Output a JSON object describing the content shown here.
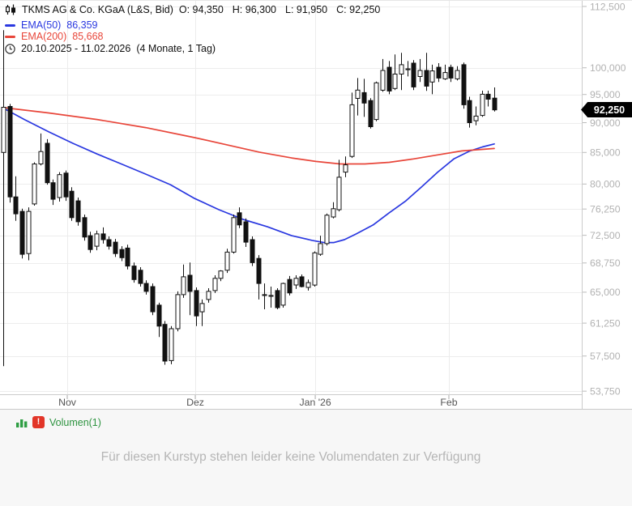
{
  "header": {
    "title": "TKMS AG & Co. KGaA (L&S, Bid)",
    "ohlc": {
      "open": "O: 94,350",
      "high": "H: 96,300",
      "low": "L: 91,950",
      "close": "C: 92,250"
    },
    "range": "20.10.2025 - 11.02.2026",
    "period": "(4 Monate, 1 Tag)"
  },
  "legend": [
    {
      "name": "EMA(50)",
      "value": "86,359",
      "color": "#2a38e0"
    },
    {
      "name": "EMA(200)",
      "value": "85,668",
      "color": "#e8463a"
    }
  ],
  "price_badge": {
    "label": "92,250",
    "value": 92250,
    "bg": "#000000",
    "fg": "#ffffff"
  },
  "volume_panel": {
    "icon": "bar-chart-icon",
    "alert": "!",
    "label": "Volumen(1)",
    "message": "Für diesen Kurstyp stehen leider keine Volumendaten zur Verfügung"
  },
  "chart_data": {
    "type": "candlestick",
    "title": "TKMS AG & Co. KGaA (L&S, Bid)",
    "scale": "log",
    "ylim": [
      53430,
      113900
    ],
    "grid": true,
    "y_ticks": [
      {
        "v": 112500,
        "label": "112,500"
      },
      {
        "v": 100000,
        "label": "100,000"
      },
      {
        "v": 95000,
        "label": "95,000"
      },
      {
        "v": 90000,
        "label": "90,000"
      },
      {
        "v": 85000,
        "label": "85,000"
      },
      {
        "v": 80000,
        "label": "80,000"
      },
      {
        "v": 76250,
        "label": "76,250"
      },
      {
        "v": 72500,
        "label": "72,500"
      },
      {
        "v": 68750,
        "label": "68,750"
      },
      {
        "v": 65000,
        "label": "65,000"
      },
      {
        "v": 61250,
        "label": "61,250"
      },
      {
        "v": 57500,
        "label": "57,500"
      },
      {
        "v": 53750,
        "label": "53,750"
      }
    ],
    "x_ticks": [
      {
        "i": 10.3,
        "label": "Nov"
      },
      {
        "i": 30.9,
        "label": "Dez"
      },
      {
        "i": 50.2,
        "label": "Jan '26"
      },
      {
        "i": 71.7,
        "label": "Feb"
      }
    ],
    "last_price": 92250,
    "ohlc": [
      [
        85000,
        107500,
        56400,
        92700
      ],
      [
        92850,
        93300,
        77200,
        78050
      ],
      [
        78050,
        81200,
        74550,
        75550
      ],
      [
        75900,
        76300,
        69350,
        69900
      ],
      [
        70000,
        76500,
        69100,
        75900
      ],
      [
        77000,
        83400,
        76750,
        83150
      ],
      [
        83150,
        88150,
        82900,
        85150
      ],
      [
        86500,
        87200,
        79900,
        80200
      ],
      [
        80200,
        80700,
        76850,
        77700
      ],
      [
        77950,
        81850,
        77350,
        81450
      ],
      [
        81700,
        82100,
        77450,
        78050
      ],
      [
        78900,
        79500,
        74550,
        75000
      ],
      [
        77450,
        77950,
        73850,
        74400
      ],
      [
        75000,
        75450,
        71750,
        72250
      ],
      [
        72450,
        73000,
        70100,
        70550
      ],
      [
        71000,
        73150,
        70450,
        72700
      ],
      [
        72700,
        73600,
        71350,
        71900
      ],
      [
        71900,
        72350,
        70550,
        71000
      ],
      [
        71550,
        72000,
        69550,
        70000
      ],
      [
        70550,
        71000,
        69000,
        69450
      ],
      [
        70750,
        71200,
        67900,
        68350
      ],
      [
        68350,
        68800,
        66200,
        66600
      ],
      [
        67800,
        68200,
        65700,
        66100
      ],
      [
        66100,
        66500,
        64700,
        65100
      ],
      [
        65700,
        66100,
        62200,
        62600
      ],
      [
        63400,
        63700,
        59650,
        60900
      ],
      [
        61100,
        61500,
        56550,
        56950
      ],
      [
        57000,
        60900,
        56600,
        60600
      ],
      [
        60600,
        65100,
        60300,
        64700
      ],
      [
        64700,
        68550,
        64300,
        66950
      ],
      [
        67150,
        68800,
        62200,
        65100
      ],
      [
        65200,
        65600,
        60900,
        62100
      ],
      [
        62600,
        64100,
        60900,
        63600
      ],
      [
        64100,
        65500,
        63700,
        65100
      ],
      [
        65200,
        67150,
        64900,
        66750
      ],
      [
        66750,
        67800,
        66400,
        67700
      ],
      [
        67800,
        70650,
        67450,
        70200
      ],
      [
        70200,
        75450,
        70000,
        75000
      ],
      [
        75700,
        76500,
        73500,
        73950
      ],
      [
        74400,
        74900,
        70900,
        71550
      ],
      [
        71900,
        72350,
        68350,
        68800
      ],
      [
        69350,
        69800,
        64100,
        66100
      ],
      [
        64700,
        66100,
        62900,
        64700
      ],
      [
        64600,
        65700,
        63100,
        64600
      ],
      [
        65200,
        65500,
        62900,
        63100
      ],
      [
        63400,
        66200,
        63100,
        66100
      ],
      [
        66600,
        67050,
        64600,
        64900
      ],
      [
        65900,
        67150,
        65400,
        66750
      ],
      [
        66950,
        67250,
        65600,
        65700
      ],
      [
        65600,
        66600,
        65200,
        66200
      ],
      [
        65900,
        70300,
        65700,
        70100
      ],
      [
        69900,
        72450,
        69700,
        71350
      ],
      [
        71350,
        75600,
        71100,
        75350
      ],
      [
        75100,
        77250,
        74900,
        76300
      ],
      [
        76150,
        83800,
        75900,
        81050
      ],
      [
        81850,
        84350,
        81050,
        83000
      ],
      [
        84350,
        95350,
        84100,
        93150
      ],
      [
        94300,
        98050,
        91250,
        95800
      ],
      [
        95350,
        97900,
        91000,
        93450
      ],
      [
        93900,
        94350,
        89000,
        89300
      ],
      [
        90550,
        97400,
        90250,
        97150
      ],
      [
        95800,
        101700,
        95500,
        99500
      ],
      [
        100100,
        101300,
        95050,
        95650
      ],
      [
        96100,
        102600,
        95800,
        98800
      ],
      [
        98800,
        102900,
        95800,
        100600
      ],
      [
        99800,
        101300,
        98350,
        99800
      ],
      [
        100900,
        101500,
        95800,
        96400
      ],
      [
        98350,
        101700,
        97300,
        99500
      ],
      [
        99500,
        102900,
        95650,
        96550
      ],
      [
        97300,
        100600,
        95050,
        99400
      ],
      [
        100100,
        100900,
        97300,
        98050
      ],
      [
        97900,
        100600,
        97700,
        99100
      ],
      [
        100100,
        100600,
        97300,
        98050
      ],
      [
        97900,
        100300,
        97600,
        99500
      ],
      [
        100600,
        101000,
        92450,
        93150
      ],
      [
        93900,
        94600,
        89150,
        90000
      ],
      [
        90350,
        92850,
        89550,
        91150
      ],
      [
        91250,
        95700,
        91000,
        95050
      ],
      [
        95050,
        95700,
        92850,
        94150
      ],
      [
        94350,
        96300,
        91950,
        92250
      ]
    ],
    "series": [
      {
        "name": "EMA(50)",
        "color": "#2a38e0",
        "points": [
          [
            0,
            92550
          ],
          [
            3.4,
            90550
          ],
          [
            7.3,
            88450
          ],
          [
            11.2,
            86500
          ],
          [
            15.1,
            84750
          ],
          [
            19,
            83150
          ],
          [
            22.9,
            81550
          ],
          [
            26.9,
            79900
          ],
          [
            30.8,
            77800
          ],
          [
            34.7,
            76150
          ],
          [
            38.6,
            74750
          ],
          [
            42.5,
            73700
          ],
          [
            46.4,
            72450
          ],
          [
            49.7,
            71800
          ],
          [
            51.6,
            71500
          ],
          [
            53.2,
            71500
          ],
          [
            54.9,
            71900
          ],
          [
            56.8,
            72700
          ],
          [
            59.5,
            73950
          ],
          [
            62.1,
            75700
          ],
          [
            64.7,
            77400
          ],
          [
            67.3,
            79550
          ],
          [
            69.9,
            81850
          ],
          [
            72.5,
            83950
          ],
          [
            75.1,
            85250
          ],
          [
            77.1,
            85900
          ],
          [
            79,
            86400
          ]
        ]
      },
      {
        "name": "EMA(200)",
        "color": "#e8463a",
        "points": [
          [
            0,
            92650
          ],
          [
            7.3,
            91700
          ],
          [
            15.1,
            90550
          ],
          [
            22.9,
            89150
          ],
          [
            30.8,
            87450
          ],
          [
            36,
            86250
          ],
          [
            41.2,
            85050
          ],
          [
            46.4,
            84100
          ],
          [
            50.3,
            83550
          ],
          [
            54.2,
            83150
          ],
          [
            58.2,
            83150
          ],
          [
            62.1,
            83400
          ],
          [
            66,
            83950
          ],
          [
            69.9,
            84600
          ],
          [
            73.8,
            85250
          ],
          [
            77.1,
            85500
          ],
          [
            79,
            85650
          ]
        ]
      }
    ]
  }
}
